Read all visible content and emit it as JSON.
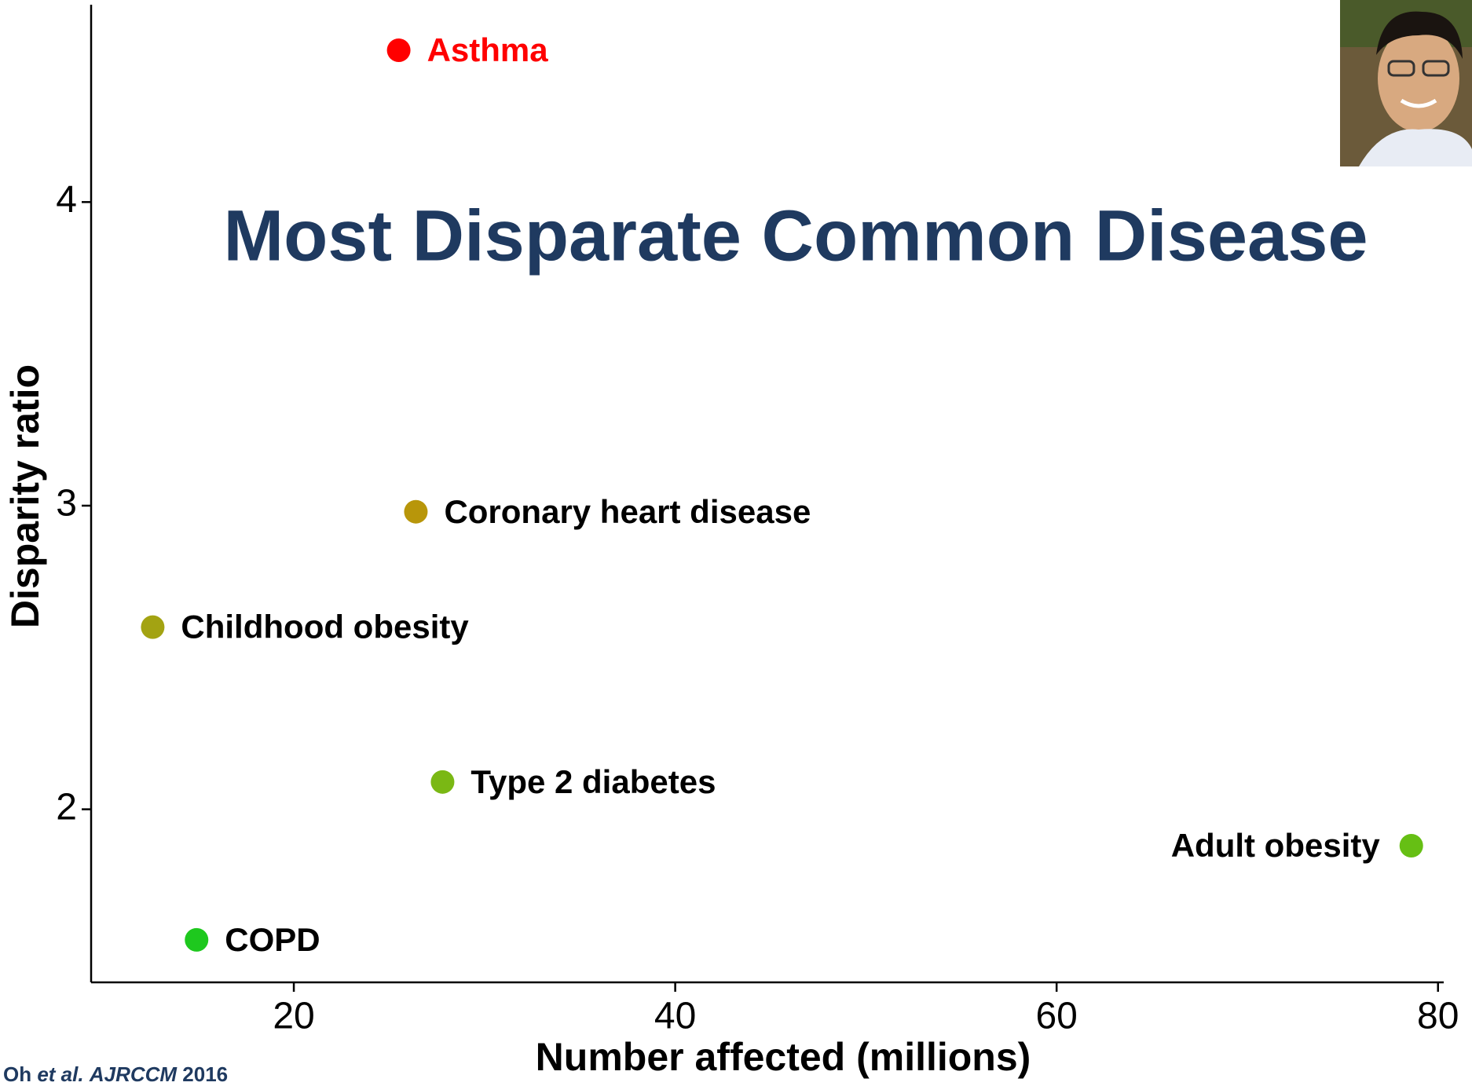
{
  "chart_data": {
    "type": "scatter",
    "title": "Most Disparate Common Disease",
    "x_label": "Number affected (millions)",
    "y_label": "Disparity ratio",
    "citation": {
      "author": "Oh",
      "etal": "et al.",
      "journal": "AJRCCM",
      "year": "2016"
    },
    "xlim": [
      9.37,
      80.3
    ],
    "xticks": [
      20,
      40,
      60,
      80
    ],
    "ylim": [
      1.43,
      4.65
    ],
    "yticks": [
      2,
      3,
      4
    ],
    "grid": false,
    "points": [
      {
        "label": "Asthma",
        "x": 25.5,
        "y": 4.5,
        "color": "#ff0000",
        "label_color": "#ff0000"
      },
      {
        "label": "Coronary heart disease",
        "x": 26.4,
        "y": 2.98,
        "color": "#b8960a",
        "label_color": "#000000"
      },
      {
        "label": "Childhood obesity",
        "x": 12.6,
        "y": 2.6,
        "color": "#a3a312",
        "label_color": "#000000"
      },
      {
        "label": "Type 2 diabetes",
        "x": 27.8,
        "y": 2.09,
        "color": "#7ab814",
        "label_color": "#000000"
      },
      {
        "label": "Adult obesity",
        "x": 78.6,
        "y": 1.88,
        "color": "#66bf14",
        "label_color": "#000000"
      },
      {
        "label": "COPD",
        "x": 14.9,
        "y": 1.57,
        "color": "#1ec81e",
        "label_color": "#000000"
      }
    ]
  }
}
